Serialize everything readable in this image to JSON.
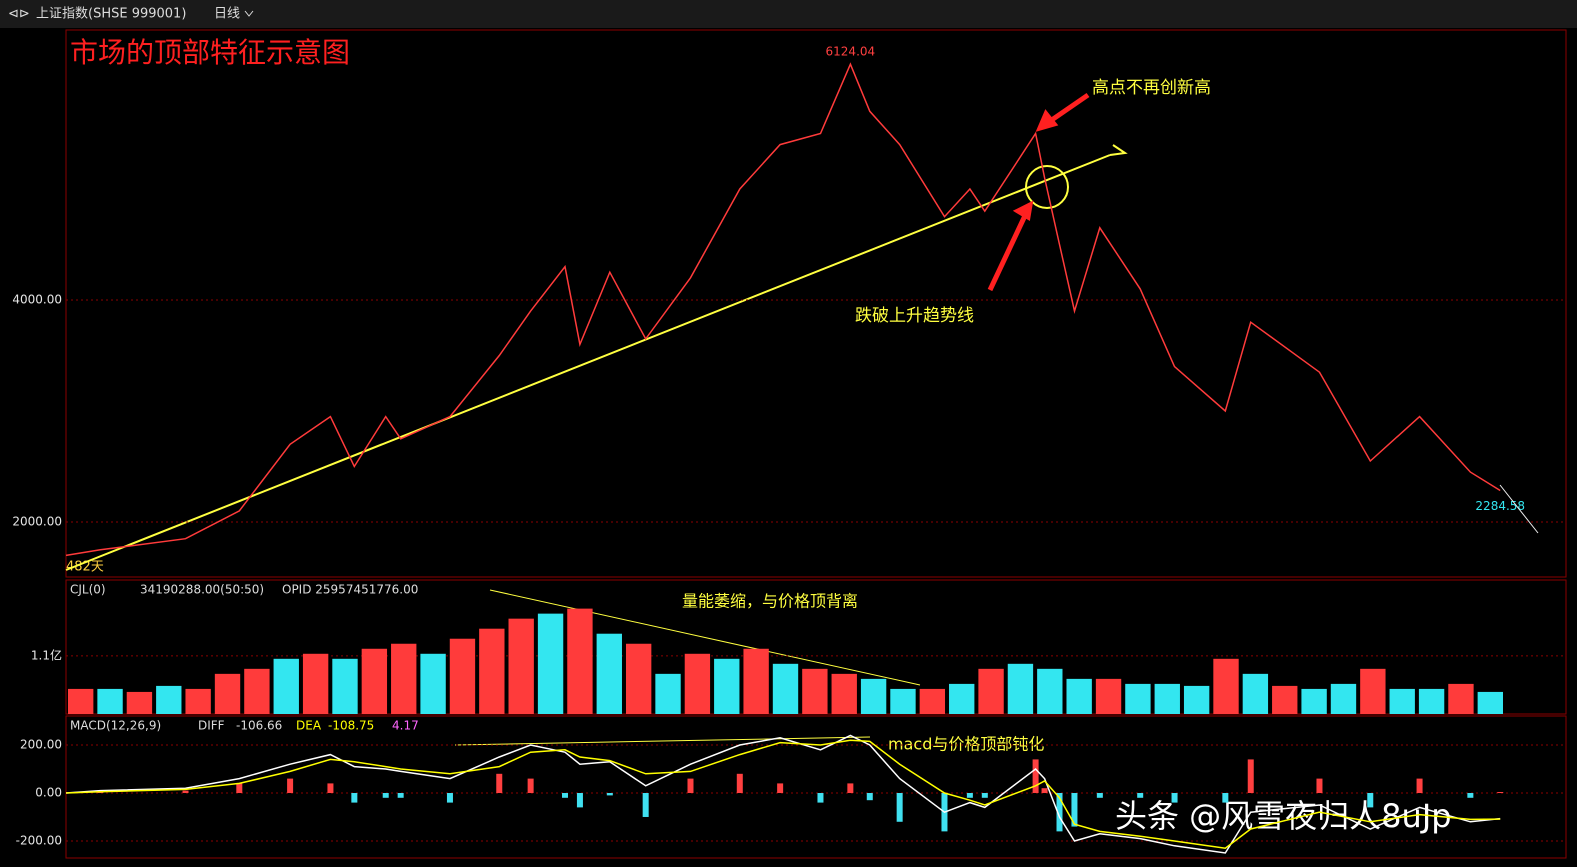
{
  "toolbar": {
    "symbol": "上证指数(SHSE 999001)",
    "period": "日线"
  },
  "chart_data": [
    {
      "type": "line",
      "title": "市场的顶部特征示意图",
      "x": [
        0,
        2.3,
        8.0,
        11.6,
        15.0,
        17.7,
        19.3,
        21.4,
        22.4,
        25.7,
        29.0,
        31.1,
        33.4,
        34.4,
        36.4,
        38.8,
        41.8,
        45.1,
        47.8,
        50.5,
        52.5,
        53.8,
        55.8,
        58.8,
        60.5,
        61.5,
        64.9,
        65.5,
        66.5,
        67.5,
        69.2,
        71.9,
        74.2,
        77.6,
        79.3,
        83.9,
        87.3,
        90.6,
        94.0,
        96.0
      ],
      "values": [
        1700,
        1750,
        1850,
        2100,
        2700,
        2950,
        2500,
        2950,
        2750,
        2950,
        3500,
        3900,
        4300,
        3600,
        4250,
        3650,
        4200,
        5000,
        5400,
        5500,
        6124.04,
        5700,
        5400,
        4750,
        5000,
        4800,
        5500,
        5100,
        4500,
        3900,
        4650,
        4100,
        3400,
        3000,
        3800,
        3350,
        2550,
        2950,
        2450,
        2284.58
      ],
      "color": "#ff3b3b",
      "xlim": [
        0,
        100
      ],
      "ylim": [
        1505,
        6432
      ],
      "yticks": [
        {
          "value": 2000,
          "label": "2000.00"
        },
        {
          "value": 4000,
          "label": "4000.00"
        }
      ],
      "grid": true,
      "annotations": [
        "482天",
        "高点不再创新高",
        "跌破上升趋势线"
      ]
    },
    {
      "type": "bar",
      "title": "CJL(0)",
      "info": [
        "34190288.00(50:50)",
        "OPID 25957451776.00"
      ],
      "values": [
        47500000,
        47500000,
        41800000,
        53200000,
        47500000,
        76000000,
        85500000,
        104500000,
        114000000,
        104500000,
        123500000,
        133000000,
        114000000,
        142500000,
        161500000,
        180500000,
        190000000,
        199500000,
        152000000,
        133000000,
        76000000,
        114000000,
        104500000,
        123500000,
        95000000,
        85500000,
        76000000,
        66500000,
        47500000,
        47500000,
        57000000,
        85500000,
        95000000,
        85500000,
        66500000,
        66500000,
        57000000,
        57000000,
        53200000,
        104500000,
        76000000,
        53200000,
        47500000,
        57000000,
        85500000,
        47500000,
        47500000,
        57000000,
        41800000
      ],
      "colors": [
        "#ff3b3b",
        "#33e6f0",
        "#ff3b3b",
        "#33e6f0",
        "#ff3b3b",
        "#ff3b3b",
        "#ff3b3b",
        "#33e6f0",
        "#ff3b3b",
        "#33e6f0",
        "#ff3b3b",
        "#ff3b3b",
        "#33e6f0",
        "#ff3b3b",
        "#ff3b3b",
        "#ff3b3b",
        "#33e6f0",
        "#ff3b3b",
        "#33e6f0",
        "#ff3b3b",
        "#33e6f0",
        "#ff3b3b",
        "#33e6f0",
        "#ff3b3b",
        "#33e6f0",
        "#ff3b3b",
        "#ff3b3b",
        "#33e6f0",
        "#33e6f0",
        "#ff3b3b",
        "#33e6f0",
        "#ff3b3b",
        "#33e6f0",
        "#33e6f0",
        "#33e6f0",
        "#ff3b3b",
        "#33e6f0",
        "#33e6f0",
        "#33e6f0",
        "#ff3b3b",
        "#33e6f0",
        "#ff3b3b",
        "#33e6f0",
        "#33e6f0",
        "#ff3b3b",
        "#33e6f0",
        "#33e6f0",
        "#ff3b3b",
        "#33e6f0"
      ],
      "ylim": [
        0,
        248000000
      ],
      "yticks": [
        {
          "value": 110000000,
          "label": "1.1亿"
        }
      ],
      "annotations": [
        "量能萎缩，与价格顶背离"
      ]
    },
    {
      "type": "line",
      "title": "MACD(12,26,9)",
      "x": [
        0,
        2.3,
        8.0,
        11.6,
        15.0,
        17.7,
        19.3,
        21.4,
        22.4,
        25.7,
        29.0,
        31.1,
        33.4,
        34.4,
        36.4,
        38.8,
        41.8,
        45.1,
        47.8,
        50.5,
        52.5,
        53.8,
        55.8,
        58.8,
        60.5,
        61.5,
        64.9,
        65.5,
        66.5,
        67.5,
        69.2,
        71.9,
        74.2,
        77.6,
        79.3,
        83.9,
        87.3,
        90.6,
        94.0,
        96.0
      ],
      "series": [
        {
          "name": "DIFF",
          "color": "#ffffff",
          "values": [
            0,
            10,
            20,
            60,
            120,
            160,
            110,
            100,
            90,
            60,
            150,
            200,
            170,
            120,
            130,
            30,
            120,
            200,
            230,
            180,
            240,
            200,
            60,
            -80,
            -40,
            -60,
            100,
            60,
            -100,
            -200,
            -170,
            -190,
            -220,
            -250,
            -80,
            -50,
            -150,
            -60,
            -120,
            -106.66
          ]
        },
        {
          "name": "DEA",
          "color": "#ffff00",
          "values": [
            0,
            5,
            15,
            40,
            90,
            140,
            130,
            110,
            100,
            80,
            110,
            170,
            180,
            150,
            135,
            80,
            90,
            160,
            210,
            200,
            220,
            215,
            120,
            0,
            -30,
            -50,
            30,
            50,
            -20,
            -130,
            -160,
            -180,
            -200,
            -230,
            -150,
            -80,
            -120,
            -90,
            -110,
            -108.75
          ]
        }
      ],
      "histogram": [
        0,
        10,
        10,
        40,
        60,
        40,
        -40,
        -20,
        -20,
        -40,
        80,
        60,
        -20,
        -60,
        -10,
        -100,
        60,
        80,
        40,
        -40,
        40,
        -30,
        -120,
        -160,
        -20,
        -20,
        140,
        20,
        -160,
        -140,
        -20,
        -20,
        -40,
        -40,
        140,
        60,
        -60,
        60,
        -20,
        4.17
      ],
      "up_color": "#ff4040",
      "down_color": "#40e0f0",
      "xlim": [
        0,
        100
      ],
      "ylim": [
        -271,
        321
      ],
      "yticks": [
        {
          "value": 200,
          "label": "200.00"
        },
        {
          "value": 0,
          "label": "0.00"
        },
        {
          "value": -200,
          "label": "-200.00"
        }
      ],
      "annotations": [
        "macd与价格顶部钝化"
      ]
    }
  ],
  "watermark": "头条 @风雪夜归人8uJp"
}
